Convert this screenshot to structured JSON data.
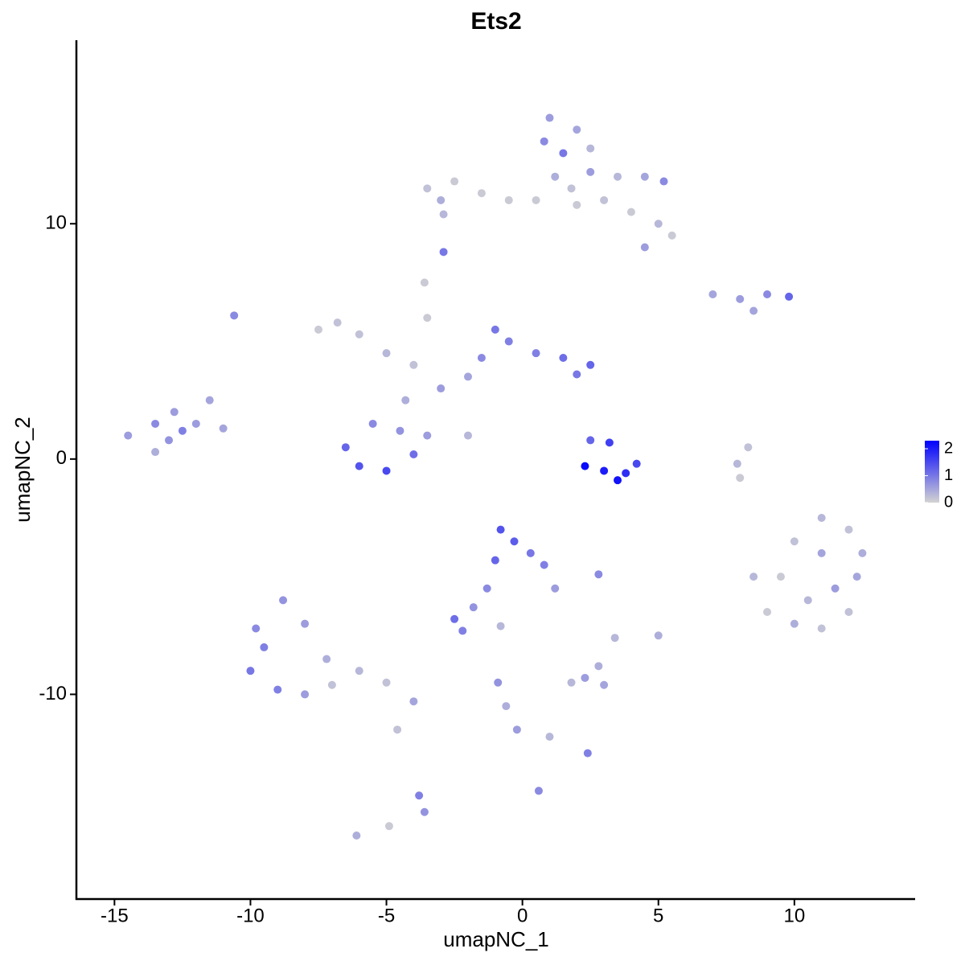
{
  "chart_data": {
    "type": "scatter",
    "title": "Ets2",
    "x_label": "umapNC_1",
    "y_label": "umapNC_2",
    "xlim": [
      -16.4,
      14.44
    ],
    "ylim": [
      -18.7,
      17.8
    ],
    "xticks": [
      -15,
      -10,
      -5,
      0,
      5,
      10
    ],
    "yticks": [
      -10,
      0,
      10
    ],
    "x": [
      1,
      0.8,
      1.5,
      2,
      2.5,
      1.2,
      1.8,
      2.5,
      3.5,
      4.5,
      5.2,
      3,
      4,
      5,
      5.5,
      4.5,
      2,
      0.5,
      -3.5,
      -2.5,
      -1.5,
      -0.5,
      -3,
      -2.9,
      -2.9,
      7,
      8,
      9,
      9.8,
      8.5,
      -7.5,
      -6.8,
      -6,
      -5,
      -4,
      -3,
      -2,
      -1.5,
      -1,
      -0.5,
      0.5,
      1.5,
      2.5,
      2,
      -3.6,
      -3.5,
      -6.5,
      -5.5,
      -5,
      -6,
      -4,
      -4.5,
      -3.5,
      -2,
      -4.3,
      -14.5,
      -13.5,
      -13,
      -12.5,
      -12,
      -11.5,
      -13.5,
      -12.8,
      -11,
      -10.6,
      2.5,
      3.2,
      3,
      2.3,
      3.8,
      4.2,
      3.5,
      8.3,
      7.9,
      8,
      9.5,
      10,
      11,
      12,
      12.5,
      11,
      10.5,
      11.5,
      12,
      9,
      10,
      8.5,
      11,
      12.3,
      -0.8,
      -0.3,
      0.3,
      -1,
      0.8,
      1.2,
      -1.3,
      -1.8,
      -2.5,
      -2.2,
      -0.8,
      2.8,
      5,
      3.4,
      2.3,
      2.8,
      1.8,
      3,
      -0.9,
      -0.6,
      -0.2,
      1,
      2.4,
      0.6,
      -10,
      -9.5,
      -8.8,
      -8,
      -9,
      -8,
      -7.2,
      -6,
      -5,
      -4,
      -9.8,
      -7,
      -4.6,
      -3.8,
      -3.6,
      -6.1,
      -4.9
    ],
    "y": [
      14.5,
      13.5,
      13,
      14,
      13.2,
      12,
      11.5,
      12.2,
      12,
      12,
      11.8,
      11,
      10.5,
      10,
      9.5,
      9,
      10.8,
      11,
      11.5,
      11.8,
      11.3,
      11,
      11,
      10.4,
      8.8,
      7,
      6.8,
      7,
      6.9,
      6.3,
      5.5,
      5.8,
      5.3,
      4.5,
      4,
      3,
      3.5,
      4.3,
      5.5,
      5,
      4.5,
      4.3,
      4,
      3.6,
      7.5,
      6,
      0.5,
      1.5,
      -0.5,
      -0.3,
      0.2,
      1.2,
      1,
      1,
      2.5,
      1,
      1.5,
      0.8,
      1.2,
      1.5,
      2.5,
      0.3,
      2,
      1.3,
      6.1,
      0.8,
      0.7,
      -0.5,
      -0.3,
      -0.6,
      -0.2,
      -0.9,
      0.5,
      -0.2,
      -0.8,
      -5,
      -3.5,
      -2.5,
      -3,
      -4,
      -4,
      -6,
      -5.5,
      -6.5,
      -6.5,
      -7,
      -5,
      -7.2,
      -5,
      -3,
      -3.5,
      -4,
      -4.3,
      -4.5,
      -5.5,
      -5.5,
      -6.3,
      -6.8,
      -7.3,
      -7.1,
      -4.9,
      -7.5,
      -7.6,
      -9.3,
      -8.8,
      -9.5,
      -9.6,
      -9.5,
      -10.5,
      -11.5,
      -11.8,
      -12.5,
      -14.1,
      -9,
      -8,
      -6,
      -7,
      -9.8,
      -10,
      -8.5,
      -9,
      -9.5,
      -10.3,
      -7.2,
      -9.6,
      -11.5,
      -14.3,
      -15,
      -16,
      -15.6
    ],
    "values": [
      0.6,
      0.8,
      1,
      0.5,
      0.3,
      0.4,
      0.2,
      0.6,
      0.3,
      0.5,
      0.8,
      0.2,
      0.1,
      0.3,
      0.1,
      0.6,
      0.1,
      0.1,
      0.2,
      0.1,
      0.1,
      0.1,
      0.4,
      0.3,
      1,
      0.5,
      0.6,
      0.8,
      1.2,
      0.5,
      0.1,
      0.2,
      0.2,
      0.3,
      0.2,
      0.6,
      0.5,
      0.8,
      1,
      0.9,
      0.9,
      1.1,
      1.2,
      1,
      0.1,
      0.1,
      1.2,
      0.8,
      1.5,
      1.4,
      1.1,
      0.7,
      0.6,
      0.3,
      0.4,
      0.6,
      0.8,
      0.7,
      0.9,
      0.6,
      0.5,
      0.4,
      0.6,
      0.5,
      0.8,
      1.2,
      1.6,
      2,
      2.2,
      1.8,
      1.5,
      2.1,
      0.2,
      0.3,
      0.1,
      0.1,
      0.2,
      0.3,
      0.2,
      0.4,
      0.5,
      0.3,
      0.6,
      0.2,
      0.1,
      0.4,
      0.3,
      0.2,
      0.5,
      1.4,
      1.3,
      1,
      1.2,
      0.9,
      0.6,
      0.8,
      0.7,
      1.1,
      0.9,
      0.3,
      0.8,
      0.4,
      0.3,
      0.6,
      0.4,
      0.3,
      0.5,
      0.7,
      0.4,
      0.6,
      0.3,
      0.9,
      0.8,
      1,
      0.9,
      0.7,
      0.6,
      0.9,
      0.6,
      0.4,
      0.3,
      0.2,
      0.5,
      0.8,
      0.2,
      0.2,
      0.9,
      0.7,
      0.4,
      0.1
    ],
    "color_scale": {
      "lim": [
        0,
        2.3
      ],
      "ticks": [
        0,
        1,
        2
      ],
      "low": "#d3d3d3",
      "high": "#0000ff"
    }
  }
}
